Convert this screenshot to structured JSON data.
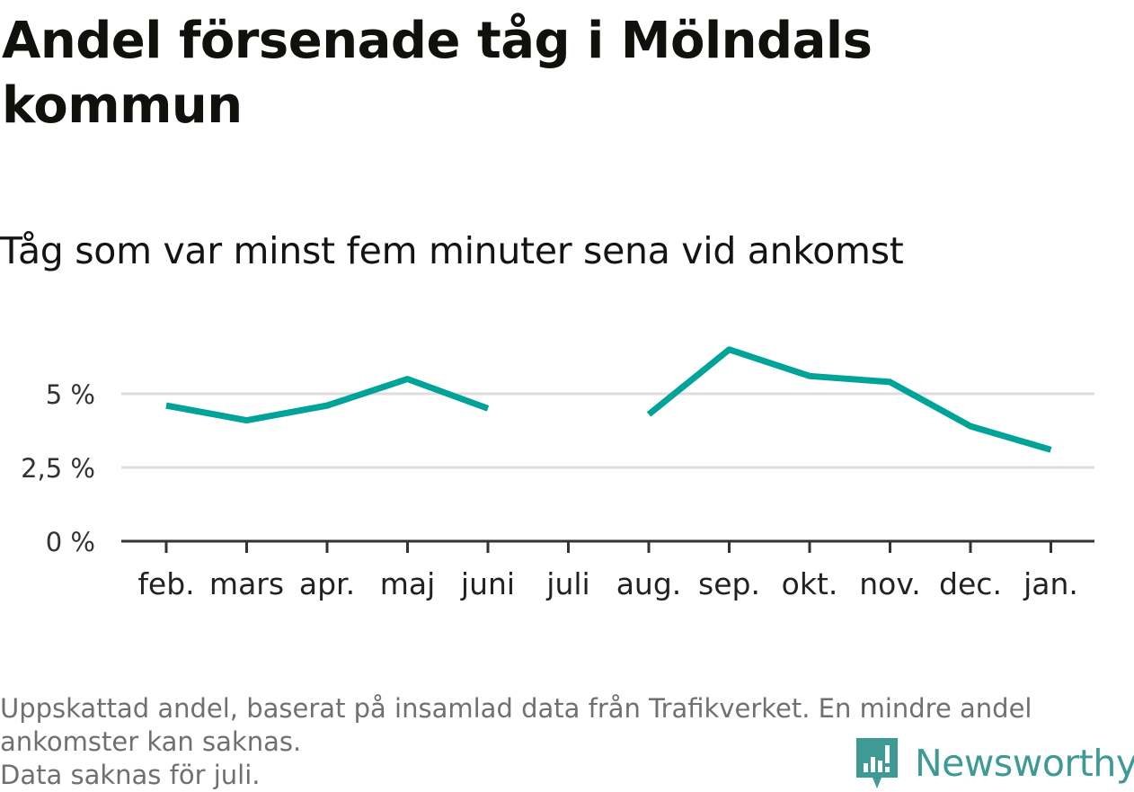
{
  "header": {
    "title": "Andel försenade tåg i Mölndals kommun",
    "subtitle": "Tåg som var minst fem minuter sena vid ankomst"
  },
  "chart_data": {
    "type": "line",
    "title": "Andel försenade tåg i Mölndals kommun",
    "subtitle": "Tåg som var minst fem minuter sena vid ankomst",
    "xlabel": "",
    "ylabel": "",
    "categories": [
      "feb.",
      "mars",
      "apr.",
      "maj",
      "juni",
      "juli",
      "aug.",
      "sep.",
      "okt.",
      "nov.",
      "dec.",
      "jan."
    ],
    "series": [
      {
        "values": [
          4.6,
          4.1,
          4.6,
          5.5,
          4.5,
          null,
          4.3,
          6.5,
          5.6,
          5.4,
          3.9,
          3.1
        ],
        "color": "#00a398"
      }
    ],
    "yticks": [
      0,
      2.5,
      5
    ],
    "ytick_labels": [
      "0 %",
      "2,5 %",
      "5 %"
    ],
    "ylim": [
      0,
      7
    ],
    "grid": true,
    "legend": "none",
    "colors": {
      "line": "#00a398",
      "grid": "#dddddd",
      "axis": "#333333"
    }
  },
  "footer": {
    "note_line_1": "Uppskattad andel, baserat på insamlad data från Trafikverket. En mindre andel",
    "note_line_2": "ankomster kan saknas.",
    "note_line_3": "Data saknas för juli.",
    "brand": "Newsworthy",
    "brand_icon": "newsworthy-logo-icon",
    "brand_color": "#3d9a94"
  }
}
